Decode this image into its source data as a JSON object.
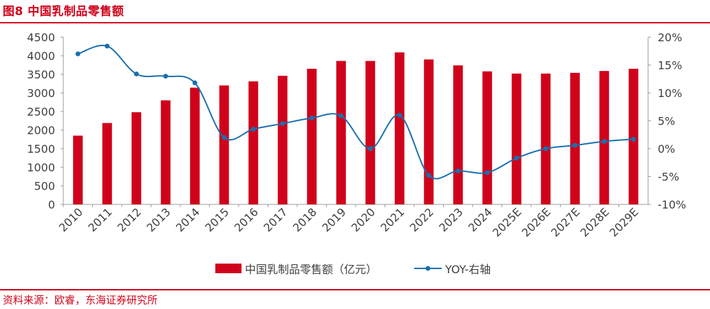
{
  "figure": {
    "title": "图8  中国乳制品零售额",
    "source": "资料来源：欧睿，东海证券研究所"
  },
  "colors": {
    "accent": "#d0021b",
    "bar": "#d0021b",
    "line": "#1a6faf",
    "axis": "#999999",
    "text": "#404040"
  },
  "chart_data": {
    "type": "bar",
    "categories": [
      "2010",
      "2011",
      "2012",
      "2013",
      "2014",
      "2015",
      "2016",
      "2017",
      "2018",
      "2019",
      "2020",
      "2021",
      "2022",
      "2023",
      "2024",
      "2025E",
      "2026E",
      "2027E",
      "2028E",
      "2029E"
    ],
    "series": [
      {
        "name": "中国乳制品零售额（亿元）",
        "type": "bar",
        "axis": "left",
        "values": [
          1850,
          2190,
          2480,
          2800,
          3140,
          3200,
          3310,
          3460,
          3650,
          3860,
          3860,
          4090,
          3900,
          3740,
          3580,
          3520,
          3520,
          3540,
          3590,
          3650
        ]
      },
      {
        "name": "YOY-右轴",
        "type": "line",
        "axis": "right",
        "unit": "%",
        "values": [
          17.0,
          18.4,
          13.4,
          13.0,
          11.8,
          2.0,
          3.5,
          4.5,
          5.5,
          5.9,
          0.0,
          6.0,
          -4.8,
          -4.0,
          -4.3,
          -1.7,
          0.0,
          0.6,
          1.3,
          1.7
        ]
      }
    ],
    "y_left": {
      "min": 0,
      "max": 4500,
      "step": 500,
      "ticks": [
        "0",
        "500",
        "1000",
        "1500",
        "2000",
        "2500",
        "3000",
        "3500",
        "4000",
        "4500"
      ]
    },
    "y_right": {
      "min": -10,
      "max": 20,
      "step": 5,
      "ticks": [
        "-10%",
        "-5%",
        "0%",
        "5%",
        "10%",
        "15%",
        "20%"
      ]
    },
    "grid": false,
    "legend_position": "bottom"
  }
}
